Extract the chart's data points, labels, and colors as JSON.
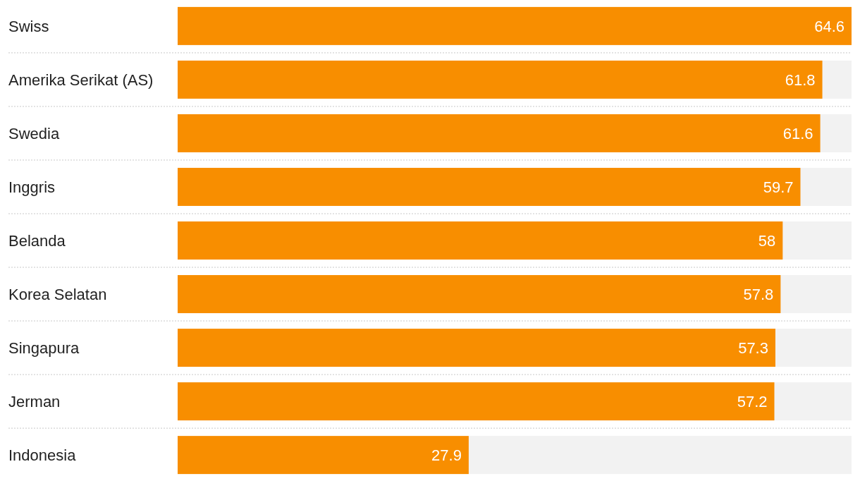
{
  "chart_data": {
    "type": "bar",
    "orientation": "horizontal",
    "categories": [
      "Swiss",
      "Amerika Serikat (AS)",
      "Swedia",
      "Inggris",
      "Belanda",
      "Korea Selatan",
      "Singapura",
      "Jerman",
      "Indonesia"
    ],
    "values": [
      64.6,
      61.8,
      61.6,
      59.7,
      58,
      57.8,
      57.3,
      57.2,
      27.9
    ],
    "color": "#f88e00",
    "xlim": [
      0,
      64.6
    ],
    "tick_labels": "y",
    "data_labels": true
  }
}
